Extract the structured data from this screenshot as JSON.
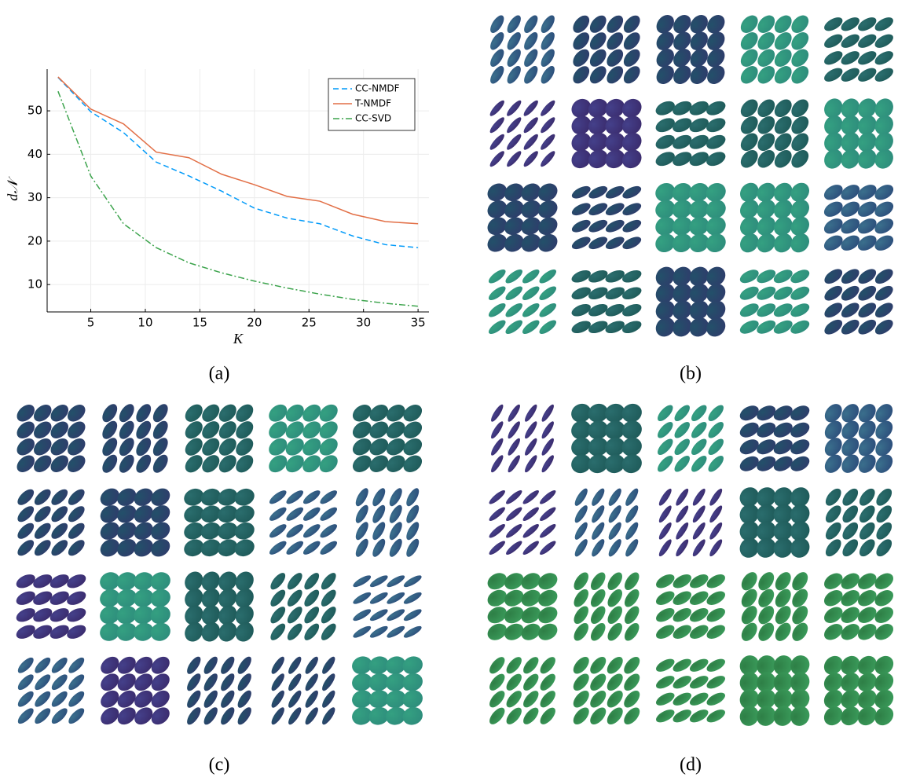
{
  "chart_data": {
    "type": "line",
    "xlabel": "K",
    "ylabel": "d𝒩",
    "x": [
      2,
      5,
      8,
      11,
      14,
      17,
      20,
      23,
      26,
      29,
      32,
      35
    ],
    "series": [
      {
        "name": "CC-NMDF",
        "color": "#009af9",
        "dash": "7,4",
        "values": [
          57.7,
          49.8,
          45,
          38.2,
          35,
          31.5,
          27.6,
          25.3,
          24,
          21.2,
          19.2,
          18.5
        ]
      },
      {
        "name": "T-NMDF",
        "color": "#e26f46",
        "dash": "none",
        "values": [
          57.8,
          50.4,
          47,
          40.5,
          39.2,
          35.4,
          33,
          30.3,
          29.2,
          26.2,
          24.5,
          24
        ]
      },
      {
        "name": "CC-SVD",
        "color": "#3da44d",
        "dash": "8,3,2,3",
        "values": [
          54.5,
          35,
          24,
          18.5,
          15,
          12.7,
          10.8,
          9.2,
          7.8,
          6.6,
          5.7,
          5.0
        ]
      }
    ],
    "xlim": [
      1,
      36
    ],
    "ylim": [
      3.7,
      59.6
    ],
    "xticks": [
      5,
      10,
      15,
      20,
      25,
      30,
      35
    ],
    "yticks": [
      10,
      20,
      30,
      40,
      50
    ],
    "grid": true,
    "legend": "top-right"
  },
  "panel_labels": [
    "(a)",
    "(b)",
    "(c)",
    "(d)"
  ]
}
